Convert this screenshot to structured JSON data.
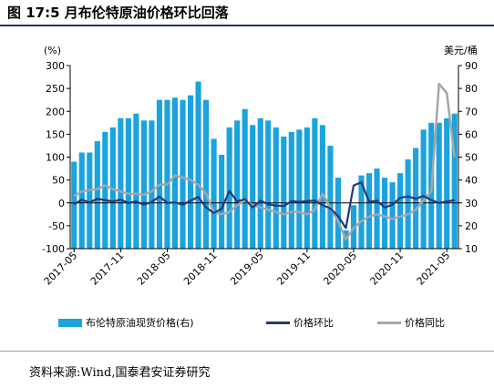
{
  "figure_title": "图 17:5 月布伦特原油价格环比回落",
  "source_note": "资料来源:Wind,国泰君安证券研究",
  "chart_data": {
    "type": "bar+line",
    "left_axis_unit": "(%)",
    "right_axis_unit": "美元/桶",
    "left_ylim": [
      -100,
      300
    ],
    "left_ticks": [
      -100,
      -50,
      0,
      50,
      100,
      150,
      200,
      250,
      300
    ],
    "right_ylim": [
      10,
      90
    ],
    "right_ticks": [
      10,
      20,
      30,
      40,
      50,
      60,
      70,
      80,
      90
    ],
    "x_tick_labels": [
      "2017-05",
      "2017-11",
      "2018-05",
      "2018-11",
      "2019-05",
      "2019-11",
      "2020-05",
      "2020-11",
      "2021-05"
    ],
    "x_tick_index": [
      0,
      6,
      12,
      18,
      24,
      30,
      36,
      42,
      48
    ],
    "legend_position": "bottom",
    "grid": false,
    "colors": {
      "bar": "#1aa3dd",
      "mom": "#1f3a7a",
      "yoy": "#a6a6a6"
    },
    "series": [
      {
        "name": "布伦特原油现货价格(右)",
        "axis": "right",
        "kind": "bar",
        "values": [
          48,
          52,
          52,
          57,
          61,
          63,
          67,
          67,
          69,
          66,
          66,
          75,
          75,
          76,
          75,
          77,
          83,
          75,
          58,
          51,
          63,
          66,
          71,
          64,
          67,
          66,
          63,
          59,
          61,
          62,
          63,
          67,
          64,
          55,
          41,
          18,
          29,
          42,
          43,
          45,
          41,
          39,
          43,
          49,
          54,
          62,
          65,
          65,
          67,
          69
        ]
      },
      {
        "name": "价格环比",
        "axis": "left",
        "kind": "line",
        "values": [
          -3,
          7,
          1,
          9,
          6,
          3,
          7,
          0,
          3,
          -4,
          2,
          14,
          0,
          1,
          -4,
          5,
          13,
          -10,
          -22,
          -13,
          26,
          3,
          8,
          -10,
          5,
          -3,
          -6,
          -7,
          4,
          2,
          4,
          5,
          -5,
          -12,
          -29,
          -55,
          38,
          45,
          2,
          5,
          -10,
          -4,
          11,
          14,
          9,
          15,
          6,
          0,
          3,
          6
        ]
      },
      {
        "name": "价格同比",
        "axis": "left",
        "kind": "line",
        "values": [
          15,
          25,
          28,
          30,
          38,
          30,
          25,
          20,
          20,
          18,
          25,
          40,
          40,
          60,
          55,
          50,
          40,
          20,
          -20,
          -25,
          -20,
          -5,
          5,
          -5,
          -10,
          -15,
          -20,
          -25,
          -20,
          -20,
          -25,
          -15,
          20,
          -10,
          -40,
          -80,
          -55,
          -40,
          -30,
          -25,
          -30,
          -35,
          -30,
          -25,
          -15,
          5,
          25,
          260,
          240,
          100
        ]
      }
    ]
  }
}
